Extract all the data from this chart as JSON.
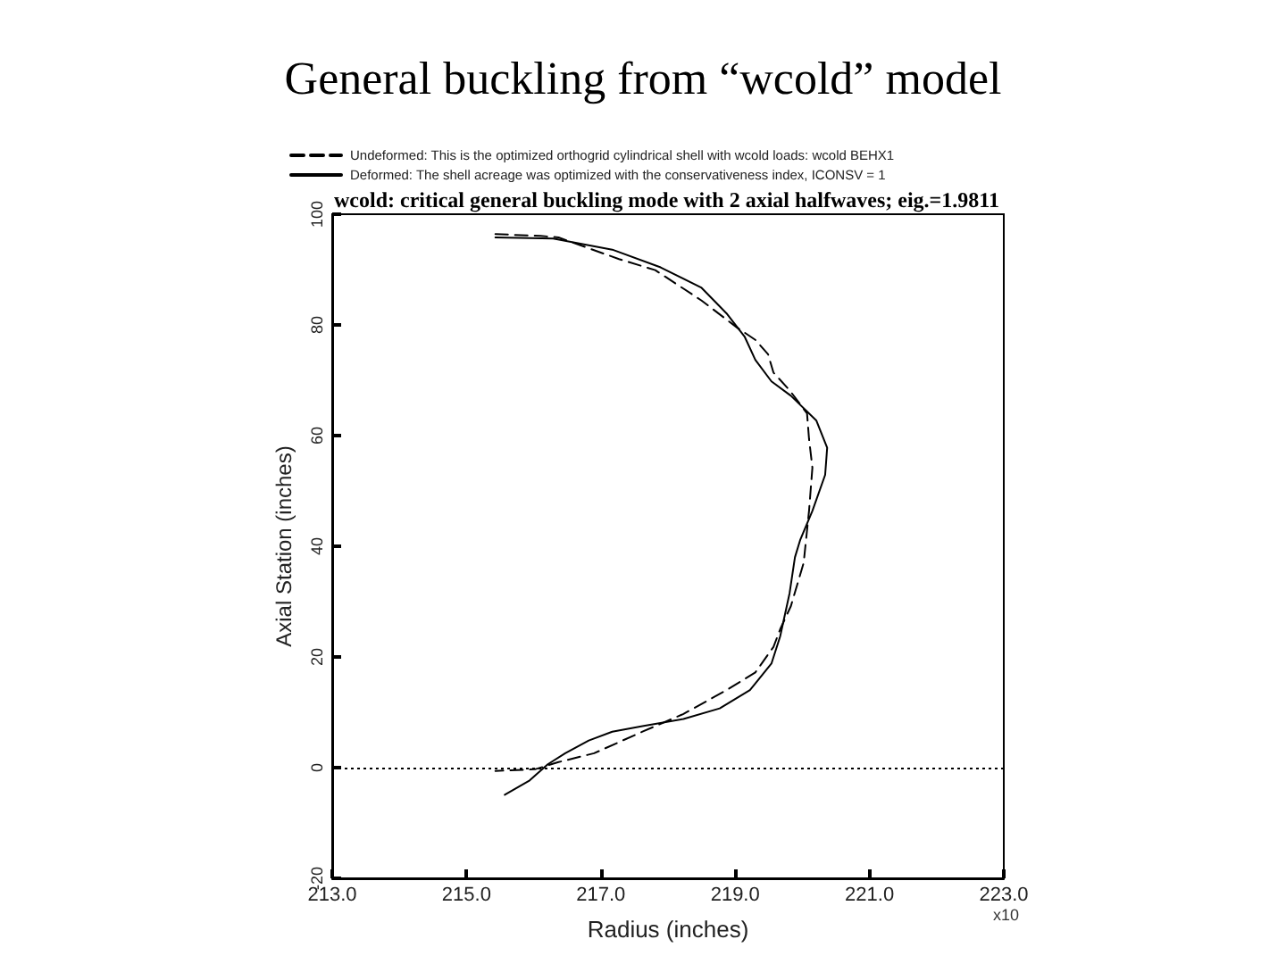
{
  "chart_data": {
    "type": "line",
    "title": "General buckling from “wcold” model",
    "subtitle": "wcold: critical general buckling mode with 2 axial halfwaves; eig.=1.9811",
    "xlabel": "Radius (inches)",
    "ylabel": "Axial Station (inches)",
    "series": [
      {
        "name": "Undeformed: This is the optimized orthogrid cylindrical shell with wcold loads: wcold BEHX1",
        "color": "#000000",
        "line_style": "dashed",
        "x": [
          215.43,
          216.1,
          216.37,
          217.27,
          217.81,
          218.5,
          219.03,
          219.3,
          219.49,
          219.57,
          219.81,
          220.07,
          220.1,
          220.15,
          220.1,
          220.02,
          219.83,
          219.67,
          219.57,
          219.3,
          218.87,
          218.23,
          217.62,
          216.9,
          216.37,
          216.02,
          215.43
        ],
        "values": [
          96.4,
          96.1,
          95.8,
          91.9,
          89.9,
          84.4,
          79.5,
          77.3,
          74.7,
          71.4,
          68.2,
          64.0,
          59.4,
          54.2,
          46.4,
          37.0,
          29.2,
          25.0,
          21.8,
          17.2,
          14.0,
          9.7,
          6.5,
          2.6,
          1.0,
          -0.3,
          -0.6
        ]
      },
      {
        "name": "Deformed: The shell acreage was optimized with the conservativeness index, ICONSV = 1",
        "color": "#000000",
        "line_style": "solid",
        "x": [
          215.43,
          216.29,
          217.17,
          217.89,
          218.5,
          218.87,
          219.14,
          219.3,
          219.54,
          219.83,
          220.21,
          220.37,
          220.34,
          220.15,
          219.97,
          219.89,
          219.81,
          219.67,
          219.54,
          219.22,
          218.77,
          218.23,
          217.62,
          217.17,
          216.82,
          216.47,
          216.21,
          215.94,
          215.57
        ],
        "values": [
          95.8,
          95.6,
          93.6,
          90.4,
          86.7,
          82.1,
          77.9,
          73.7,
          69.8,
          67.2,
          62.7,
          57.8,
          52.9,
          46.4,
          41.2,
          38.0,
          31.5,
          23.7,
          18.8,
          14.0,
          10.7,
          8.8,
          7.5,
          6.5,
          4.9,
          2.6,
          0.6,
          -2.3,
          -4.9
        ]
      }
    ],
    "xlim": [
      213,
      223
    ],
    "xticks": [
      {
        "value": 213,
        "label": "213.0"
      },
      {
        "value": 215,
        "label": "215.0"
      },
      {
        "value": 217,
        "label": "217.0"
      },
      {
        "value": 219,
        "label": "219.0"
      },
      {
        "value": 221,
        "label": "221.0"
      },
      {
        "value": 223,
        "label": "223.0"
      }
    ],
    "ylim": [
      -20,
      100
    ],
    "yticks": [
      -20,
      0,
      20,
      40,
      60,
      80,
      100
    ],
    "ref_lines": [
      {
        "axis": "y",
        "value": 0,
        "line_style": "dotted",
        "color": "#000000"
      }
    ],
    "annotations": [
      "x10"
    ],
    "legend": "top",
    "grid": false
  }
}
